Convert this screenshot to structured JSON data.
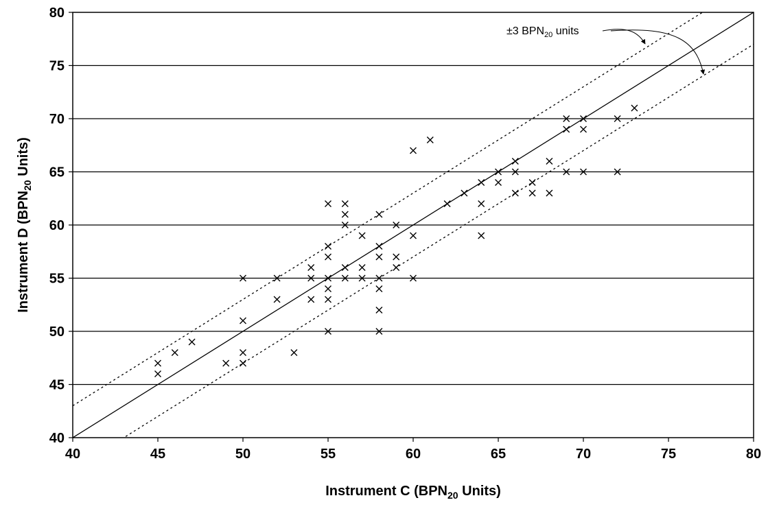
{
  "chart_data": {
    "type": "scatter",
    "title": "",
    "xlabel": {
      "prefix": "Instrument C (BPN",
      "sub": "20",
      "suffix": " Units)"
    },
    "ylabel": {
      "prefix": "Instrument D (BPN",
      "sub": "20",
      "suffix": " Units)"
    },
    "xlim": [
      40,
      80
    ],
    "ylim": [
      40,
      80
    ],
    "xticks": [
      40,
      45,
      50,
      55,
      60,
      65,
      70,
      75,
      80
    ],
    "yticks": [
      40,
      45,
      50,
      55,
      60,
      65,
      70,
      75,
      80
    ],
    "grid": "horizontal",
    "marker": "x",
    "reference_lines": [
      {
        "kind": "equality",
        "style": "solid",
        "offset": 0
      },
      {
        "kind": "tolerance",
        "style": "dotted",
        "offset": 3
      },
      {
        "kind": "tolerance",
        "style": "dotted",
        "offset": -3
      }
    ],
    "annotation": {
      "prefix": "±3 BPN",
      "sub": "20",
      "suffix": " units"
    },
    "points": [
      [
        45,
        47
      ],
      [
        45,
        46
      ],
      [
        46,
        48
      ],
      [
        47,
        49
      ],
      [
        49,
        47
      ],
      [
        50,
        55
      ],
      [
        50,
        51
      ],
      [
        50,
        48
      ],
      [
        50,
        47
      ],
      [
        52,
        55
      ],
      [
        52,
        53
      ],
      [
        53,
        48
      ],
      [
        54,
        56
      ],
      [
        54,
        55
      ],
      [
        54,
        53
      ],
      [
        55,
        62
      ],
      [
        55,
        58
      ],
      [
        55,
        57
      ],
      [
        55,
        55
      ],
      [
        55,
        54
      ],
      [
        55,
        53
      ],
      [
        55,
        50
      ],
      [
        56,
        62
      ],
      [
        56,
        61
      ],
      [
        56,
        60
      ],
      [
        56,
        56
      ],
      [
        56,
        55
      ],
      [
        57,
        59
      ],
      [
        57,
        56
      ],
      [
        57,
        55
      ],
      [
        58,
        61
      ],
      [
        58,
        58
      ],
      [
        58,
        57
      ],
      [
        58,
        55
      ],
      [
        58,
        54
      ],
      [
        58,
        52
      ],
      [
        58,
        50
      ],
      [
        59,
        60
      ],
      [
        59,
        57
      ],
      [
        59,
        56
      ],
      [
        60,
        67
      ],
      [
        60,
        59
      ],
      [
        60,
        55
      ],
      [
        61,
        68
      ],
      [
        62,
        62
      ],
      [
        63,
        63
      ],
      [
        64,
        64
      ],
      [
        64,
        62
      ],
      [
        64,
        59
      ],
      [
        65,
        65
      ],
      [
        65,
        64
      ],
      [
        66,
        66
      ],
      [
        66,
        65
      ],
      [
        66,
        63
      ],
      [
        67,
        64
      ],
      [
        67,
        63
      ],
      [
        68,
        66
      ],
      [
        68,
        63
      ],
      [
        69,
        70
      ],
      [
        69,
        69
      ],
      [
        69,
        65
      ],
      [
        70,
        70
      ],
      [
        70,
        69
      ],
      [
        70,
        65
      ],
      [
        72,
        70
      ],
      [
        72,
        65
      ],
      [
        73,
        71
      ]
    ]
  }
}
